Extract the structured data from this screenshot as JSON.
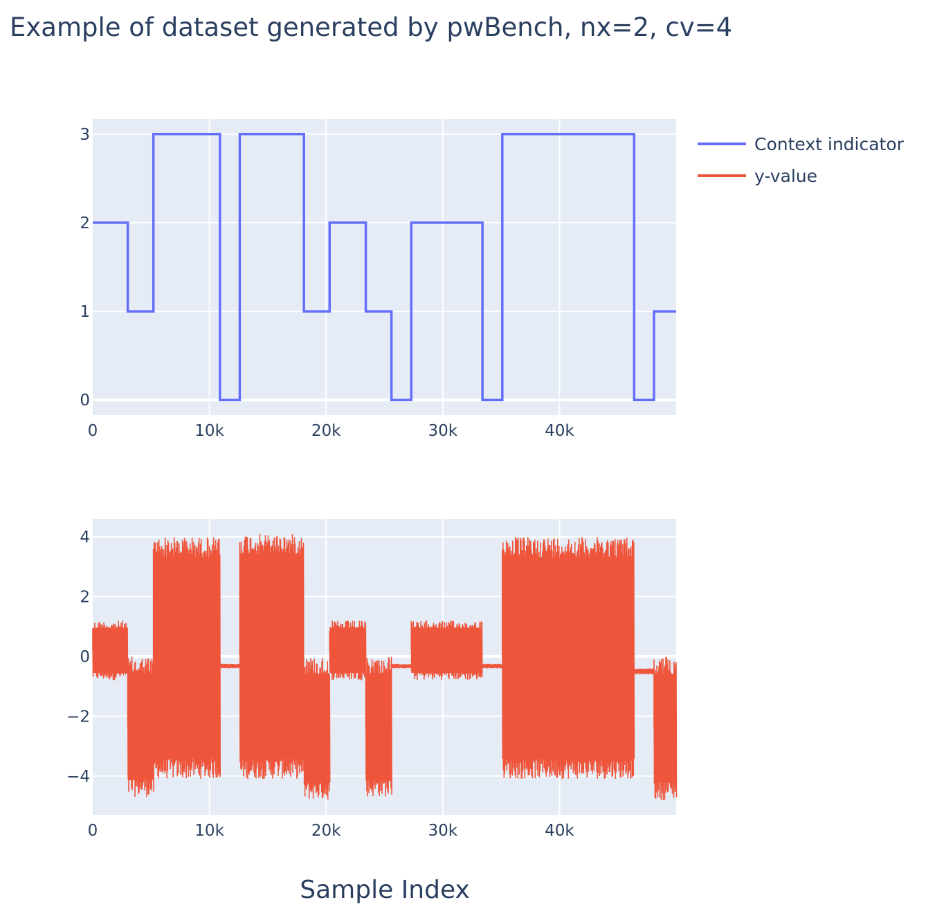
{
  "title": "Example of dataset generated by pwBench, nx=2, cv=4",
  "x_axis_title": "Sample Index",
  "legend": [
    {
      "label": "Context indicator",
      "color": "#636efa"
    },
    {
      "label": "y-value",
      "color": "#ef553b"
    }
  ],
  "colors": {
    "plot_bg": "#e5ecf6",
    "grid": "#ffffff",
    "text": "#2a3f5f"
  },
  "chart_data": [
    {
      "type": "line",
      "line_shape": "step",
      "series": [
        {
          "name": "Context indicator",
          "color": "#636efa",
          "steps": [
            [
              0,
              2
            ],
            [
              3000,
              1
            ],
            [
              5200,
              3
            ],
            [
              10900,
              0
            ],
            [
              12600,
              3
            ],
            [
              18100,
              1
            ],
            [
              20300,
              2
            ],
            [
              23400,
              1
            ],
            [
              25600,
              0
            ],
            [
              27300,
              2
            ],
            [
              33400,
              0
            ],
            [
              35100,
              3
            ],
            [
              46400,
              0
            ],
            [
              48100,
              1
            ],
            [
              50000,
              1
            ]
          ]
        }
      ],
      "xlim": [
        0,
        50000
      ],
      "ylim": [
        -0.17,
        3.17
      ],
      "x_ticks": [
        0,
        10000,
        20000,
        30000,
        40000
      ],
      "x_tick_labels": [
        "0",
        "10k",
        "20k",
        "30k",
        "40k"
      ],
      "y_ticks": [
        0,
        1,
        2,
        3
      ],
      "y_tick_labels": [
        "0",
        "1",
        "2",
        "3"
      ],
      "grid": true
    },
    {
      "type": "line",
      "series": [
        {
          "name": "y-value",
          "color": "#ef553b",
          "segments": [
            {
              "x": [
                0,
                3000
              ],
              "low": -0.8,
              "high": 1.2
            },
            {
              "x": [
                3000,
                5200
              ],
              "low": -4.7,
              "high": 0.0
            },
            {
              "x": [
                5200,
                10900
              ],
              "low": -4.1,
              "high": 4.0
            },
            {
              "x": [
                10900,
                12600
              ],
              "low": -0.4,
              "high": -0.25
            },
            {
              "x": [
                12600,
                18100
              ],
              "low": -4.1,
              "high": 4.1
            },
            {
              "x": [
                18100,
                20300
              ],
              "low": -4.8,
              "high": 0.0
            },
            {
              "x": [
                20300,
                23400
              ],
              "low": -0.8,
              "high": 1.2
            },
            {
              "x": [
                23400,
                25600
              ],
              "low": -4.7,
              "high": 0.0
            },
            {
              "x": [
                25600,
                27300
              ],
              "low": -0.4,
              "high": -0.25
            },
            {
              "x": [
                27300,
                33400
              ],
              "low": -0.8,
              "high": 1.2
            },
            {
              "x": [
                33400,
                35100
              ],
              "low": -0.4,
              "high": -0.25
            },
            {
              "x": [
                35100,
                46400
              ],
              "low": -4.1,
              "high": 4.0
            },
            {
              "x": [
                46400,
                48100
              ],
              "low": -0.6,
              "high": -0.4
            },
            {
              "x": [
                48100,
                50000
              ],
              "low": -4.8,
              "high": 0.0
            }
          ]
        }
      ],
      "xlim": [
        0,
        50000
      ],
      "ylim": [
        -5.3,
        4.6
      ],
      "x_ticks": [
        0,
        10000,
        20000,
        30000,
        40000
      ],
      "x_tick_labels": [
        "0",
        "10k",
        "20k",
        "30k",
        "40k"
      ],
      "y_ticks": [
        -4,
        -2,
        0,
        2,
        4
      ],
      "y_tick_labels": [
        "−4",
        "−2",
        "0",
        "2",
        "4"
      ],
      "grid": true,
      "xlabel": "Sample Index"
    }
  ]
}
